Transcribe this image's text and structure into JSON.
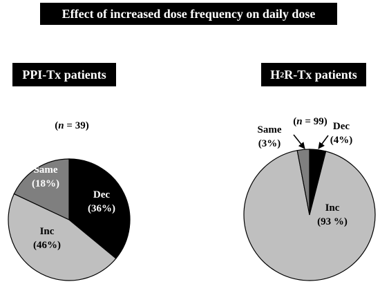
{
  "title": "Effect of increased dose frequency on daily dose",
  "chart_data": [
    {
      "type": "pie",
      "title_parts": [
        "PPI-Tx patients"
      ],
      "n_label": "n",
      "n_value": "= 39)",
      "slices": [
        {
          "name": "Dec",
          "value": 36,
          "label": "(36%)",
          "color": "#000000",
          "text_color": "#ffffff"
        },
        {
          "name": "Inc",
          "value": 46,
          "label": "(46%)",
          "color": "#bfbfbf",
          "text_color": "#000000"
        },
        {
          "name": "Same",
          "value": 18,
          "label": "(18%)",
          "color": "#7f7f7f",
          "text_color": "#ffffff"
        }
      ]
    },
    {
      "type": "pie",
      "title_parts": [
        "H",
        "2",
        "R-Tx patients"
      ],
      "n_label": "n",
      "n_value": "= 99)",
      "slices": [
        {
          "name": "Dec",
          "value": 4,
          "label": "(4%)",
          "color": "#000000",
          "text_color": "#000000"
        },
        {
          "name": "Inc",
          "value": 93,
          "label": "(93 %)",
          "color": "#bfbfbf",
          "text_color": "#000000"
        },
        {
          "name": "Same",
          "value": 3,
          "label": "(3%)",
          "color": "#7f7f7f",
          "text_color": "#000000"
        }
      ]
    }
  ]
}
